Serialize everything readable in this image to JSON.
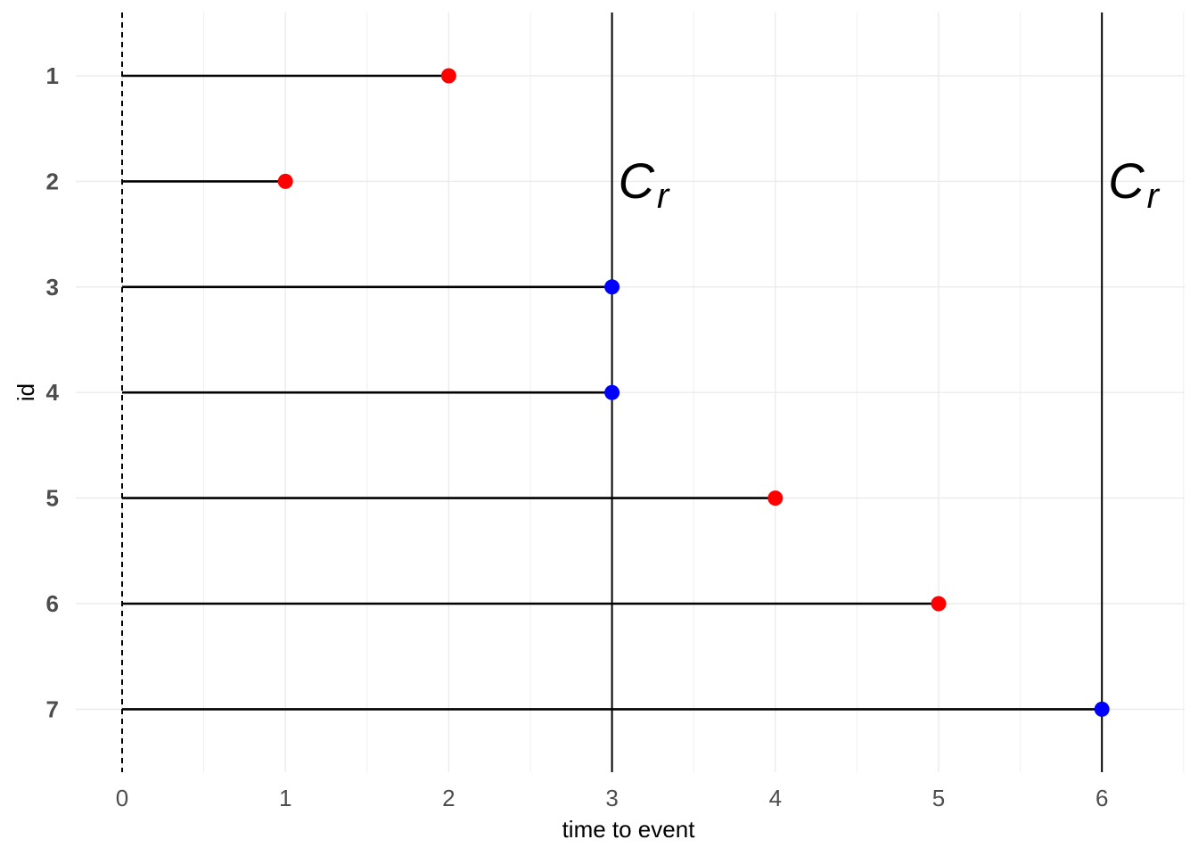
{
  "chart_data": {
    "type": "scatter",
    "xlabel": "time to event",
    "ylabel": "id",
    "xlim": [
      -0.25,
      6.5
    ],
    "x_ticks": [
      0,
      1,
      2,
      3,
      4,
      5,
      6
    ],
    "x_tick_labels": [
      "0",
      "1",
      "2",
      "3",
      "4",
      "5",
      "6"
    ],
    "categories": [
      "1",
      "2",
      "3",
      "4",
      "5",
      "6",
      "7"
    ],
    "subjects": [
      {
        "id": "1",
        "time": 2,
        "status": "event"
      },
      {
        "id": "2",
        "time": 1,
        "status": "event"
      },
      {
        "id": "3",
        "time": 3,
        "status": "censored"
      },
      {
        "id": "4",
        "time": 3,
        "status": "censored"
      },
      {
        "id": "5",
        "time": 4,
        "status": "event"
      },
      {
        "id": "6",
        "time": 5,
        "status": "event"
      },
      {
        "id": "7",
        "time": 6,
        "status": "censored"
      }
    ],
    "reference_lines": [
      {
        "x": 3,
        "label_main": "C",
        "label_sub": "r"
      },
      {
        "x": 6,
        "label_main": "C",
        "label_sub": "r"
      }
    ],
    "baseline": {
      "x": 0,
      "style": "dashed"
    },
    "grid": true,
    "colors": {
      "event": "#ff0000",
      "censored": "#0000ff",
      "segment": "#000000",
      "grid": "#ebebeb",
      "tick_text": "#4d4d4d"
    }
  }
}
